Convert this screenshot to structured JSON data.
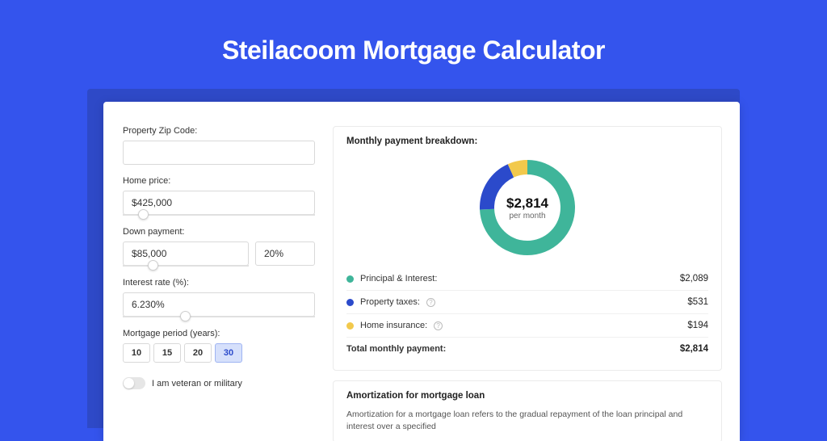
{
  "page": {
    "title": "Steilacoom Mortgage Calculator",
    "background_color": "#3454ed",
    "card_bg": "#ffffff",
    "shadow_color": "#2e49c7"
  },
  "form": {
    "zip_label": "Property Zip Code:",
    "zip_value": "",
    "home_price_label": "Home price:",
    "home_price_value": "$425,000",
    "home_price_slider_pct": 8,
    "down_payment_label": "Down payment:",
    "down_payment_value": "$85,000",
    "down_payment_pct_value": "20%",
    "down_payment_slider_pct": 20,
    "interest_label": "Interest rate (%):",
    "interest_value": "6.230%",
    "interest_slider_pct": 30,
    "period_label": "Mortgage period (years):",
    "periods": [
      "10",
      "15",
      "20",
      "30"
    ],
    "period_selected": "30",
    "veteran_label": "I am veteran or military",
    "veteran_on": false
  },
  "breakdown": {
    "title": "Monthly payment breakdown:",
    "center_value": "$2,814",
    "center_sub": "per month",
    "donut": {
      "radius": 50,
      "stroke": 18,
      "slices": [
        {
          "key": "pi",
          "pct": 74.2,
          "color": "#3fb59a"
        },
        {
          "key": "tax",
          "pct": 18.9,
          "color": "#2b4acb"
        },
        {
          "key": "ins",
          "pct": 6.9,
          "color": "#f2c94c"
        }
      ]
    },
    "rows": [
      {
        "key": "pi",
        "label": "Principal & Interest:",
        "value": "$2,089",
        "color": "#3fb59a",
        "info": false
      },
      {
        "key": "tax",
        "label": "Property taxes:",
        "value": "$531",
        "color": "#2b4acb",
        "info": true
      },
      {
        "key": "ins",
        "label": "Home insurance:",
        "value": "$194",
        "color": "#f2c94c",
        "info": true
      }
    ],
    "total_label": "Total monthly payment:",
    "total_value": "$2,814"
  },
  "amort": {
    "title": "Amortization for mortgage loan",
    "text": "Amortization for a mortgage loan refers to the gradual repayment of the loan principal and interest over a specified"
  }
}
